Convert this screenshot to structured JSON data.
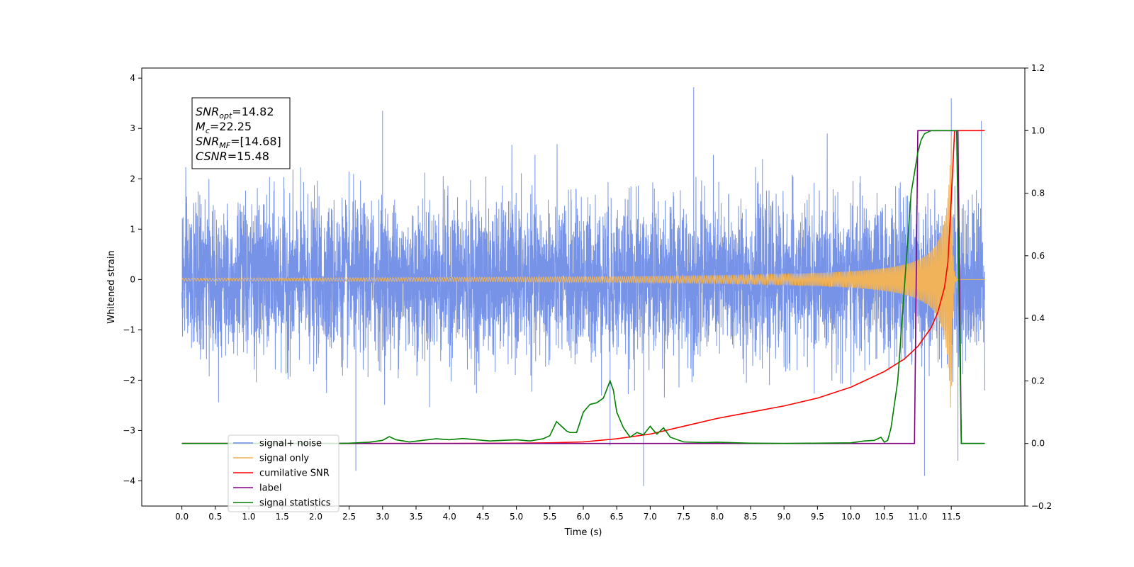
{
  "chart_data": {
    "type": "line",
    "xlabel": "Time (s)",
    "ylabel": "Whitened strain",
    "xlim": [
      -0.6,
      12.6
    ],
    "ylim": [
      -4.5,
      4.2
    ],
    "y2lim": [
      -0.2,
      1.2
    ],
    "grid": false,
    "legend_position": "lower-left",
    "x_ticks": [
      "0.0",
      "0.5",
      "1.0",
      "1.5",
      "2.0",
      "2.5",
      "3.0",
      "3.5",
      "4.0",
      "4.5",
      "5.0",
      "5.5",
      "6.0",
      "6.5",
      "7.0",
      "7.5",
      "8.0",
      "8.5",
      "9.0",
      "9.5",
      "10.0",
      "10.5",
      "11.0",
      "11.5"
    ],
    "x_tick_values": [
      0,
      0.5,
      1,
      1.5,
      2,
      2.5,
      3,
      3.5,
      4,
      4.5,
      5,
      5.5,
      6,
      6.5,
      7,
      7.5,
      8,
      8.5,
      9,
      9.5,
      10,
      10.5,
      11,
      11.5
    ],
    "y_ticks": [
      "−4",
      "−3",
      "−2",
      "−1",
      "0",
      "1",
      "2",
      "3",
      "4"
    ],
    "y_tick_values": [
      -4,
      -3,
      -2,
      -1,
      0,
      1,
      2,
      3,
      4
    ],
    "y2_ticks": [
      "−0.2",
      "0.0",
      "0.2",
      "0.4",
      "0.6",
      "0.8",
      "1.0",
      "1.2"
    ],
    "y2_tick_values": [
      -0.2,
      0,
      0.2,
      0.4,
      0.6,
      0.8,
      1.0,
      1.2
    ],
    "colors": {
      "noise": "#6b8ae6",
      "signal": "#f0b35a",
      "csnr": "#ff0000",
      "label": "#800080",
      "stats": "#008000"
    },
    "noise": {
      "t_start": 0.0,
      "t_end": 12.0,
      "typical_amplitude": 1.3,
      "peak_values": [
        {
          "t": 2.6,
          "v": -3.8
        },
        {
          "t": 3.0,
          "v": 3.35
        },
        {
          "t": 6.4,
          "v": -3.3
        },
        {
          "t": 6.9,
          "v": -4.1
        },
        {
          "t": 7.65,
          "v": 3.82
        },
        {
          "t": 11.1,
          "v": -3.9
        },
        {
          "t": 11.5,
          "v": 3.6
        },
        {
          "t": 11.6,
          "v": -3.6
        },
        {
          "t": 11.95,
          "v": 3.15
        }
      ]
    },
    "signal_chirp": {
      "t_start": 0.0,
      "t_merger": 11.5,
      "t_end": 12.0,
      "peak_amplitude": 3.0
    },
    "annotation": {
      "lines": [
        {
          "base": "SNR",
          "sub": "opt",
          "value": "=14.82"
        },
        {
          "base": "M",
          "sub": "c",
          "value": "=22.25"
        },
        {
          "base": "SNR",
          "sub": "MF",
          "value": "=[14.68]"
        },
        {
          "base": "CSNR",
          "sub": "",
          "value": "=15.48"
        }
      ]
    },
    "series": [
      {
        "name": "signal+ noise",
        "axis": "left",
        "color": "#6b8ae6"
      },
      {
        "name": "signal only",
        "axis": "left",
        "color": "#f0b35a"
      },
      {
        "name": "cumilative SNR",
        "axis": "right",
        "color": "#ff0000",
        "x": [
          0,
          1,
          2,
          3,
          4,
          5,
          5.5,
          6,
          6.5,
          7,
          7.5,
          8,
          8.5,
          9,
          9.5,
          10,
          10.5,
          10.8,
          11,
          11.2,
          11.3,
          11.4,
          11.45,
          11.5,
          11.55,
          12
        ],
        "y": [
          0,
          0,
          0,
          0,
          0,
          0.001,
          0.002,
          0.005,
          0.015,
          0.03,
          0.055,
          0.08,
          0.1,
          0.12,
          0.145,
          0.18,
          0.23,
          0.27,
          0.31,
          0.37,
          0.42,
          0.5,
          0.58,
          0.78,
          1.0,
          1.0
        ]
      },
      {
        "name": "label",
        "axis": "right",
        "color": "#800080",
        "x": [
          0,
          10.95,
          11.0,
          11.6,
          11.65,
          12
        ],
        "y": [
          0,
          0,
          1,
          1,
          0,
          0
        ]
      },
      {
        "name": "signal statistics",
        "axis": "right",
        "color": "#008000",
        "x": [
          0,
          2.3,
          2.5,
          2.8,
          3.0,
          3.1,
          3.2,
          3.4,
          3.6,
          3.8,
          4.0,
          4.2,
          4.4,
          4.6,
          4.8,
          5.0,
          5.2,
          5.4,
          5.5,
          5.6,
          5.65,
          5.7,
          5.75,
          5.8,
          5.9,
          6.0,
          6.1,
          6.2,
          6.3,
          6.4,
          6.45,
          6.5,
          6.6,
          6.7,
          6.8,
          6.9,
          7.0,
          7.05,
          7.1,
          7.2,
          7.3,
          7.5,
          7.8,
          8.0,
          8.3,
          8.5,
          9.0,
          9.5,
          10.0,
          10.2,
          10.35,
          10.45,
          10.5,
          10.55,
          10.6,
          10.7,
          10.8,
          10.9,
          11.0,
          11.05,
          11.1,
          11.2,
          11.3,
          11.5,
          11.58,
          11.65,
          12
        ],
        "y": [
          0,
          0,
          0.001,
          0.004,
          0.01,
          0.022,
          0.012,
          0.005,
          0.01,
          0.015,
          0.012,
          0.016,
          0.012,
          0.008,
          0.01,
          0.012,
          0.008,
          0.015,
          0.025,
          0.07,
          0.06,
          0.05,
          0.04,
          0.035,
          0.035,
          0.1,
          0.125,
          0.13,
          0.145,
          0.2,
          0.17,
          0.1,
          0.05,
          0.02,
          0.035,
          0.028,
          0.055,
          0.042,
          0.03,
          0.05,
          0.02,
          0.005,
          0.003,
          0.004,
          0.002,
          0.001,
          0.0,
          0.001,
          0.002,
          0.008,
          0.01,
          0.02,
          0.004,
          0.01,
          0.05,
          0.2,
          0.5,
          0.8,
          0.93,
          0.97,
          0.99,
          1.0,
          1.0,
          1.0,
          1.0,
          0.0,
          0.0
        ]
      }
    ]
  }
}
